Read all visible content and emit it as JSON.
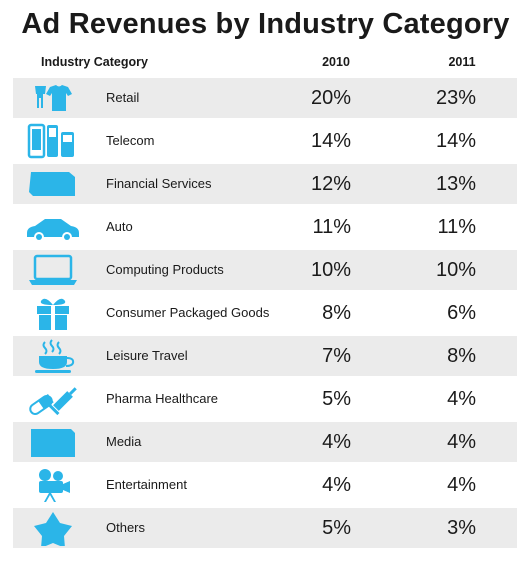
{
  "chart_data": {
    "type": "table",
    "title": "Ad Revenues by Industry Category",
    "columns": [
      "Industry Category",
      "2010",
      "2011"
    ],
    "rows": [
      {
        "category": "Retail",
        "icon": "retail-icon",
        "v2010": "20%",
        "v2011": "23%"
      },
      {
        "category": "Telecom",
        "icon": "telecom-icon",
        "v2010": "14%",
        "v2011": "14%"
      },
      {
        "category": "Financial Services",
        "icon": "financial-services-icon",
        "v2010": "12%",
        "v2011": "13%"
      },
      {
        "category": "Auto",
        "icon": "car-icon",
        "v2010": "11%",
        "v2011": "11%"
      },
      {
        "category": "Computing Products",
        "icon": "laptop-icon",
        "v2010": "10%",
        "v2011": "10%"
      },
      {
        "category": "Consumer Packaged Goods",
        "icon": "gift-box-icon",
        "v2010": "8%",
        "v2011": "6%"
      },
      {
        "category": "Leisure Travel",
        "icon": "coffee-cup-icon",
        "v2010": "7%",
        "v2011": "8%"
      },
      {
        "category": "Pharma Healthcare",
        "icon": "pill-syringe-icon",
        "v2010": "5%",
        "v2011": "4%"
      },
      {
        "category": "Media",
        "icon": "media-icon",
        "v2010": "4%",
        "v2011": "4%"
      },
      {
        "category": "Entertainment",
        "icon": "movie-camera-icon",
        "v2010": "4%",
        "v2011": "4%"
      },
      {
        "category": "Others",
        "icon": "star-icon",
        "v2010": "5%",
        "v2011": "3%"
      }
    ],
    "series": [
      {
        "name": "2010",
        "values": [
          20,
          14,
          12,
          11,
          10,
          8,
          7,
          5,
          4,
          4,
          5
        ]
      },
      {
        "name": "2011",
        "values": [
          23,
          14,
          13,
          11,
          10,
          6,
          8,
          4,
          4,
          4,
          3
        ]
      }
    ],
    "unit": "%"
  },
  "colors": {
    "icon": "#2bb5e8",
    "row_shade": "#ebebeb",
    "text": "#1a1a1a"
  }
}
